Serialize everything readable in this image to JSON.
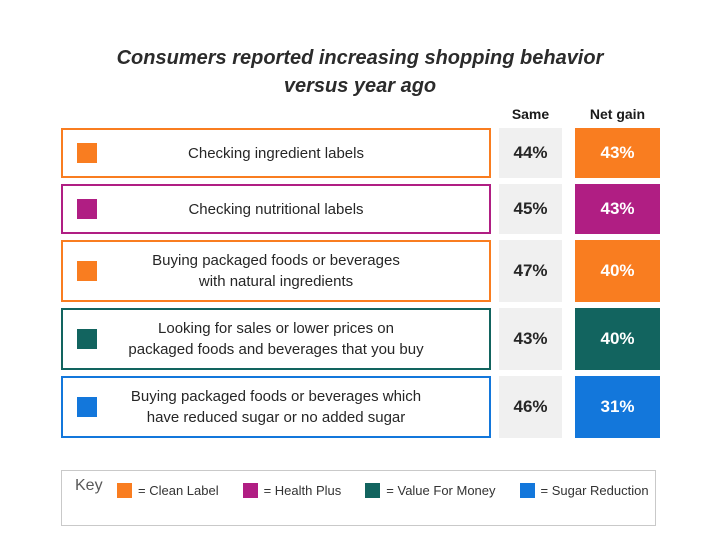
{
  "title_lines": [
    "Consumers reported increasing shopping behavior",
    "versus year ago"
  ],
  "columns": {
    "same": "Same",
    "net_gain": "Net gain"
  },
  "colors": {
    "clean_label": "#F97D20",
    "health_plus": "#B01E83",
    "value_for_money": "#12645F",
    "sugar_reduction": "#1377DB",
    "same_cell_bg": "#F0F0F0",
    "text_dark": "#262626"
  },
  "chart_data": {
    "type": "table",
    "title": "Consumers reported increasing shopping behavior versus year ago",
    "columns": [
      "Same",
      "Net gain"
    ],
    "rows": [
      {
        "label": "Checking ingredient labels",
        "label_lines": [
          "Checking ingredient labels"
        ],
        "category": "Clean Label",
        "color": "#F97D20",
        "same": "44%",
        "net_gain": "43%"
      },
      {
        "label": "Checking nutritional labels",
        "label_lines": [
          "Checking nutritional labels"
        ],
        "category": "Health Plus",
        "color": "#B01E83",
        "same": "45%",
        "net_gain": "43%"
      },
      {
        "label": "Buying packaged foods or beverages with natural ingredients",
        "label_lines": [
          "Buying packaged foods or beverages",
          "with natural ingredients"
        ],
        "category": "Clean Label",
        "color": "#F97D20",
        "same": "47%",
        "net_gain": "40%"
      },
      {
        "label": "Looking for sales or lower prices on packaged foods and beverages that you buy",
        "label_lines": [
          "Looking for sales or lower prices on",
          "packaged foods and beverages that you buy"
        ],
        "category": "Value For Money",
        "color": "#12645F",
        "same": "43%",
        "net_gain": "40%"
      },
      {
        "label": "Buying packaged foods or beverages which have reduced sugar or no added sugar",
        "label_lines": [
          "Buying packaged foods or beverages which",
          "have reduced sugar or no added sugar"
        ],
        "category": "Sugar Reduction",
        "color": "#1377DB",
        "same": "46%",
        "net_gain": "31%"
      }
    ]
  },
  "key": {
    "label": "Key",
    "items": [
      {
        "text": "= Clean Label",
        "color": "#F97D20"
      },
      {
        "text": "= Health Plus",
        "color": "#B01E83"
      },
      {
        "text": "= Value For Money",
        "color": "#12645F"
      },
      {
        "text": "= Sugar Reduction",
        "color": "#1377DB"
      }
    ]
  }
}
